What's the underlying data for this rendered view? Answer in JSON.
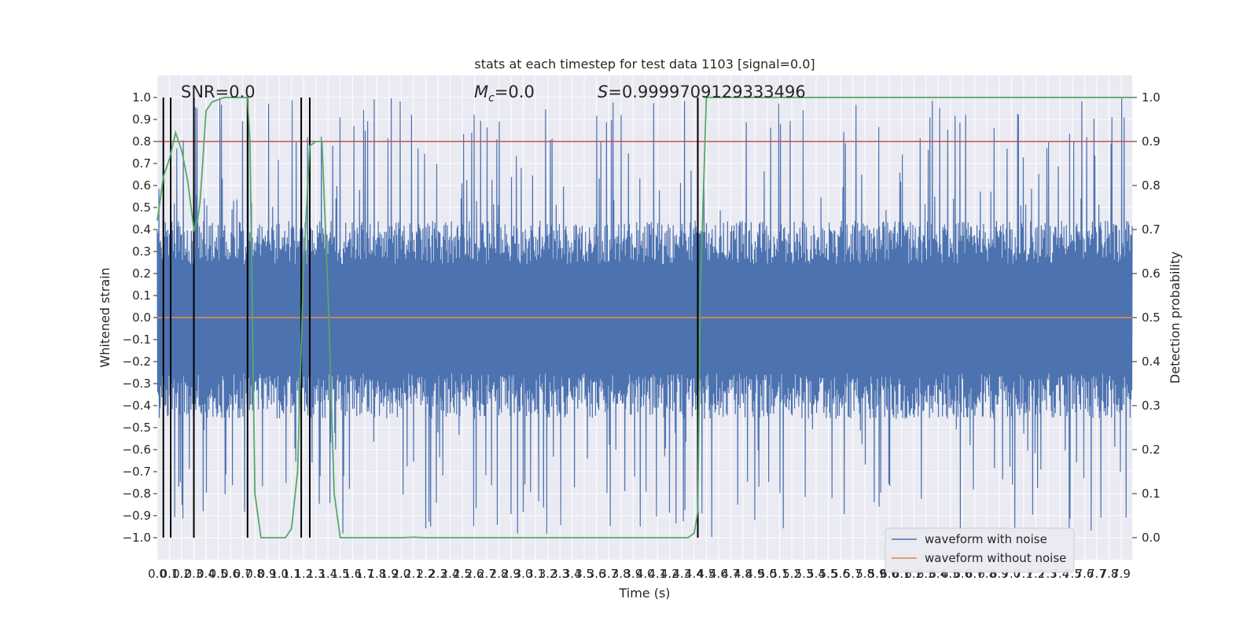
{
  "chart_data": {
    "type": "line",
    "title": "stats at each timestep for test data 1103 [signal=0.0]",
    "xlabel": "Time (s)",
    "ylabel_left": "Whitened strain",
    "ylabel_right": "Detection probability",
    "xlim": [
      0.0,
      7.99
    ],
    "ylim_left": [
      -1.1,
      1.1
    ],
    "ylim_right": [
      -0.05,
      1.05
    ],
    "x_ticks": [
      "0.0",
      "0.1",
      "0.2",
      "0.3",
      "0.4",
      "0.5",
      "0.6",
      "0.7",
      "0.8",
      "0.9",
      "1.0",
      "1.1",
      "1.2",
      "1.3",
      "1.4",
      "1.5",
      "1.6",
      "1.7",
      "1.8",
      "1.9",
      "2.0",
      "2.1",
      "2.2",
      "2.3",
      "2.4",
      "2.5",
      "2.6",
      "2.7",
      "2.8",
      "2.9",
      "3.0",
      "3.1",
      "3.2",
      "3.3",
      "3.4",
      "3.5",
      "3.6",
      "3.7",
      "3.8",
      "3.9",
      "4.0",
      "4.1",
      "4.2",
      "4.3",
      "4.4",
      "4.5",
      "4.6",
      "4.7",
      "4.8",
      "4.9",
      "5.0",
      "5.1",
      "5.2",
      "5.3",
      "5.4",
      "5.5",
      "5.6",
      "5.7",
      "5.8",
      "5.9",
      "6.0",
      "6.1",
      "6.2",
      "6.3",
      "6.4",
      "6.5",
      "6.6",
      "6.7",
      "6.8",
      "6.9",
      "7.0",
      "7.1",
      "7.2",
      "7.3",
      "7.4",
      "7.5",
      "7.6",
      "7.7",
      "7.8",
      "7.9"
    ],
    "y_ticks_left": [
      "1.0",
      "0.9",
      "0.8",
      "0.7",
      "0.6",
      "0.5",
      "0.4",
      "0.3",
      "0.2",
      "0.1",
      "0.0",
      "−0.1",
      "−0.2",
      "−0.3",
      "−0.4",
      "−0.5",
      "−0.6",
      "−0.7",
      "−0.8",
      "−0.9",
      "−1.0"
    ],
    "y_ticks_right": [
      "1.0",
      "0.9",
      "0.8",
      "0.7",
      "0.6",
      "0.5",
      "0.4",
      "0.3",
      "0.2",
      "0.1",
      "0.0"
    ],
    "annotations": {
      "snr": "SNR=0.0",
      "mc_symbol": "M",
      "mc_sub": "c",
      "mc_value": "=0.0",
      "s_symbol": "S",
      "s_value": "=0.9999709129333496"
    },
    "grid": true,
    "legend_position": "lower-right",
    "legend": [
      "waveform with noise",
      "waveform without noise"
    ],
    "series": [
      {
        "name": "waveform with noise",
        "color": "#4c72b0",
        "envelope_pos": 0.44,
        "envelope_neg": -0.46,
        "peak_abs": 1.0
      },
      {
        "name": "waveform without noise",
        "color": "#dd8452",
        "constant": 0.0
      }
    ],
    "detection_probability": {
      "color": "#55a868",
      "x": [
        0.0,
        0.05,
        0.1,
        0.15,
        0.2,
        0.25,
        0.3,
        0.33,
        0.35,
        0.37,
        0.4,
        0.45,
        0.5,
        0.55,
        0.6,
        0.65,
        0.7,
        0.74,
        0.76,
        0.78,
        0.8,
        0.85,
        0.9,
        0.95,
        1.0,
        1.05,
        1.1,
        1.15,
        1.2,
        1.25,
        1.3,
        1.35,
        1.4,
        1.45,
        1.5,
        1.6,
        2.0,
        2.1,
        2.2,
        3.0,
        4.0,
        4.3,
        4.35,
        4.4,
        4.43,
        4.45,
        4.5,
        5.0,
        6.0,
        7.0,
        7.99
      ],
      "y": [
        0.72,
        0.82,
        0.86,
        0.92,
        0.88,
        0.81,
        0.7,
        0.72,
        0.76,
        0.84,
        0.97,
        0.99,
        0.995,
        1.0,
        1.0,
        1.0,
        1.0,
        1.0,
        0.9,
        0.5,
        0.1,
        0.0,
        0.0,
        0.0,
        0.0,
        0.0,
        0.02,
        0.15,
        0.62,
        0.89,
        0.9,
        0.9,
        0.55,
        0.1,
        0.0,
        0.0,
        0.0,
        0.001,
        0.0,
        0.0,
        0.0,
        0.0,
        0.0,
        0.01,
        0.06,
        0.55,
        1.0,
        1.0,
        1.0,
        1.0,
        1.0
      ]
    },
    "threshold": {
      "value": 0.9,
      "color": "#c44e52"
    },
    "detections": [
      0.05,
      0.11,
      0.3,
      0.74,
      1.18,
      1.25,
      4.43
    ],
    "detection_color": "#000000"
  }
}
